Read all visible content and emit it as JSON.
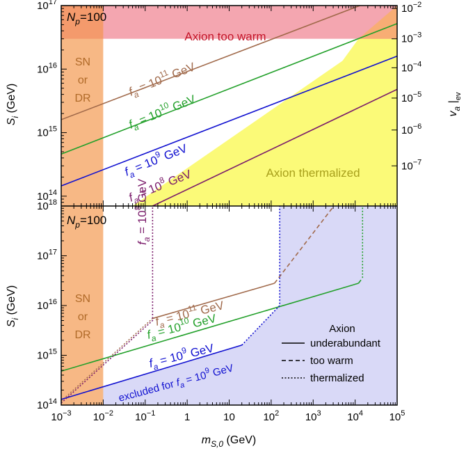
{
  "chart_data": [
    {
      "panel": "top",
      "type": "line",
      "xscale": "log",
      "yscale": "log",
      "xlim": [
        0.001,
        100000
      ],
      "ylim": [
        70000000000000.0,
        1e+17
      ],
      "ylabel_main": "S",
      "ylabel_sub": "i",
      "ylabel_unit": "(GeV)",
      "yticks": [
        {
          "v": 100000000000000.0,
          "base": "10",
          "exp": "14"
        },
        {
          "v": 1000000000000000.0,
          "base": "10",
          "exp": "15"
        },
        {
          "v": 1e+16,
          "base": "10",
          "exp": "16"
        },
        {
          "v": 1e+17,
          "base": "10",
          "exp": "17"
        }
      ],
      "y2label_main": "v",
      "y2label_sub": "a",
      "y2label_bar": "|",
      "y2label_ev": "ev",
      "y2ticks": [
        {
          "v": 300000000000000.0,
          "base": "10",
          "exp": "−7"
        },
        {
          "v": 1100000000000000.0,
          "base": "10",
          "exp": "−6"
        },
        {
          "v": 3500000000000000.0,
          "base": "10",
          "exp": "−5"
        },
        {
          "v": 1.05e+16,
          "base": "10",
          "exp": "−4"
        },
        {
          "v": 3e+16,
          "base": "10",
          "exp": "−3"
        },
        {
          "v": 9e+16,
          "base": "10",
          "exp": "−2"
        }
      ],
      "np_label_main": "N",
      "np_label_sub": "p",
      "np_label_val": "=100",
      "regions": {
        "warm_label": "Axion too warm",
        "warm_color": "#f4a6b0",
        "sn_labels": [
          "SN",
          "or",
          "DR"
        ],
        "sn_color": "#f7b885",
        "therm_label": "Axion thermalized",
        "therm_color": "#fbfa78",
        "warm_threshold": 3e+16,
        "sn_xmax": 0.01,
        "therm_boundary": [
          [
            0.01,
            70000000000000.0
          ],
          [
            0.05,
            70000000000000.0
          ],
          [
            5000,
            1.35e+16
          ],
          [
            12000,
            3e+16
          ],
          [
            100000,
            1e+17
          ]
        ]
      },
      "series": [
        {
          "label_pre": "f",
          "label_sub": "a",
          "label_mid": " = 10",
          "label_exp": "11",
          "label_unit": " GeV",
          "color": "#a0694a",
          "points": [
            [
              0.001,
              1600000000000000.0
            ],
            [
              13000,
              1e+17
            ]
          ]
        },
        {
          "label_pre": "f",
          "label_sub": "a",
          "label_mid": " = 10",
          "label_exp": "10",
          "label_unit": " GeV",
          "color": "#22a02a",
          "points": [
            [
              0.001,
              460000000000000.0
            ],
            [
              100000,
              5.2e+16
            ]
          ]
        },
        {
          "label_pre": "f",
          "label_sub": "a",
          "label_mid": " = 10",
          "label_exp": "9",
          "label_unit": " GeV",
          "color": "#1010d0",
          "points": [
            [
              0.001,
              145000000000000.0
            ],
            [
              100000,
              1.6e+16
            ]
          ]
        },
        {
          "label_pre": "f",
          "label_sub": "a",
          "label_mid": " = 10",
          "label_exp": "8",
          "label_unit": " GeV",
          "color": "#7a1a6a",
          "points": [
            [
              0.15,
              70000000000000.0
            ],
            [
              100000,
              4800000000000000.0
            ]
          ]
        }
      ]
    },
    {
      "panel": "bottom",
      "type": "line",
      "xscale": "log",
      "yscale": "log",
      "xlim": [
        0.001,
        100000
      ],
      "ylim": [
        100000000000000.0,
        1e+18
      ],
      "xlabel_main": "m",
      "xlabel_sub": "S,0",
      "xlabel_unit": "(GeV)",
      "xticks": [
        {
          "v": 0.001,
          "base": "10",
          "exp": "−3"
        },
        {
          "v": 0.01,
          "base": "10",
          "exp": "−2"
        },
        {
          "v": 0.1,
          "base": "10",
          "exp": "−1"
        },
        {
          "v": 1,
          "base": "1",
          "exp": ""
        },
        {
          "v": 10,
          "base": "10",
          "exp": ""
        },
        {
          "v": 100,
          "base": "10",
          "exp": "2"
        },
        {
          "v": 1000,
          "base": "10",
          "exp": "3"
        },
        {
          "v": 10000,
          "base": "10",
          "exp": "4"
        },
        {
          "v": 100000,
          "base": "10",
          "exp": "5"
        }
      ],
      "ylabel_main": "S",
      "ylabel_sub": "i",
      "ylabel_unit": "(GeV)",
      "yticks": [
        {
          "v": 100000000000000.0,
          "base": "10",
          "exp": "14"
        },
        {
          "v": 1000000000000000.0,
          "base": "10",
          "exp": "15"
        },
        {
          "v": 1e+16,
          "base": "10",
          "exp": "16"
        },
        {
          "v": 1e+17,
          "base": "10",
          "exp": "17"
        },
        {
          "v": 1e+18,
          "base": "10",
          "exp": "18"
        }
      ],
      "np_label_main": "N",
      "np_label_sub": "p",
      "np_label_val": "=100",
      "regions": {
        "sn_labels": [
          "SN",
          "or",
          "DR"
        ],
        "sn_color": "#f7b885",
        "excluded_color": "#d9d9f7",
        "excluded_text": "excluded for ",
        "excluded_f": "f",
        "excluded_sub": "a",
        "excluded_eq": " = 10",
        "excluded_exp": "9",
        "excluded_unit": " GeV",
        "excluded_boundary": [
          [
            0.001,
            100000000000000.0
          ],
          [
            0.001,
            130000000000000.0
          ],
          [
            20,
            1600000000000000.0
          ],
          [
            160,
            1e+16
          ],
          [
            160,
            4e+18
          ]
        ]
      },
      "series": [
        {
          "label_exp": "11",
          "color": "#a0694a",
          "segments": [
            {
              "style": "dotted",
              "points": [
                [
                  0.001,
                  120000000000000.0
                ],
                [
                  0.15,
                  5500000000000000.0
                ]
              ]
            },
            {
              "style": "solid",
              "points": [
                [
                  0.15,
                  5500000000000000.0
                ],
                [
                  120,
                  2.8e+16
                ]
              ]
            },
            {
              "style": "dashed",
              "points": [
                [
                  120,
                  2.8e+16
                ],
                [
                  11000,
                  4e+18
                ]
              ]
            }
          ]
        },
        {
          "label_exp": "10",
          "color": "#22a02a",
          "segments": [
            {
              "style": "solid",
              "points": [
                [
                  0.001,
                  480000000000000.0
                ],
                [
                  12000,
                  2.8e+16
                ]
              ]
            },
            {
              "style": "dashed",
              "points": [
                [
                  12000,
                  2.8e+16
                ],
                [
                  15000,
                  3.6e+16
                ]
              ]
            },
            {
              "style": "dotted",
              "points": [
                [
                  15000,
                  3.6e+16
                ],
                [
                  15000,
                  4e+18
                ]
              ]
            }
          ]
        },
        {
          "label_exp": "9",
          "color": "#1010d0",
          "segments": [
            {
              "style": "solid",
              "points": [
                [
                  0.001,
                  130000000000000.0
                ],
                [
                  20,
                  1600000000000000.0
                ]
              ]
            },
            {
              "style": "dotted",
              "points": [
                [
                  20,
                  1600000000000000.0
                ],
                [
                  160,
                  1e+16
                ],
                [
                  160,
                  4e+18
                ]
              ]
            }
          ]
        },
        {
          "label_exp": "8",
          "color": "#7a1a6a",
          "segments": [
            {
              "style": "dotted",
              "points": [
                [
                  0.001,
                  110000000000000.0
                ],
                [
                  0.15,
                  5000000000000000.0
                ],
                [
                  0.15,
                  4e+18
                ]
              ]
            }
          ]
        }
      ],
      "label_f": "f",
      "label_sub": "a",
      "label_eq": " = 10",
      "label_unit": " GeV",
      "legend": {
        "title": "Axion",
        "items": [
          {
            "style": "solid",
            "label": "underabundant"
          },
          {
            "style": "dashed",
            "label": "too warm"
          },
          {
            "style": "dotted",
            "label": "thermalized"
          }
        ]
      }
    }
  ]
}
